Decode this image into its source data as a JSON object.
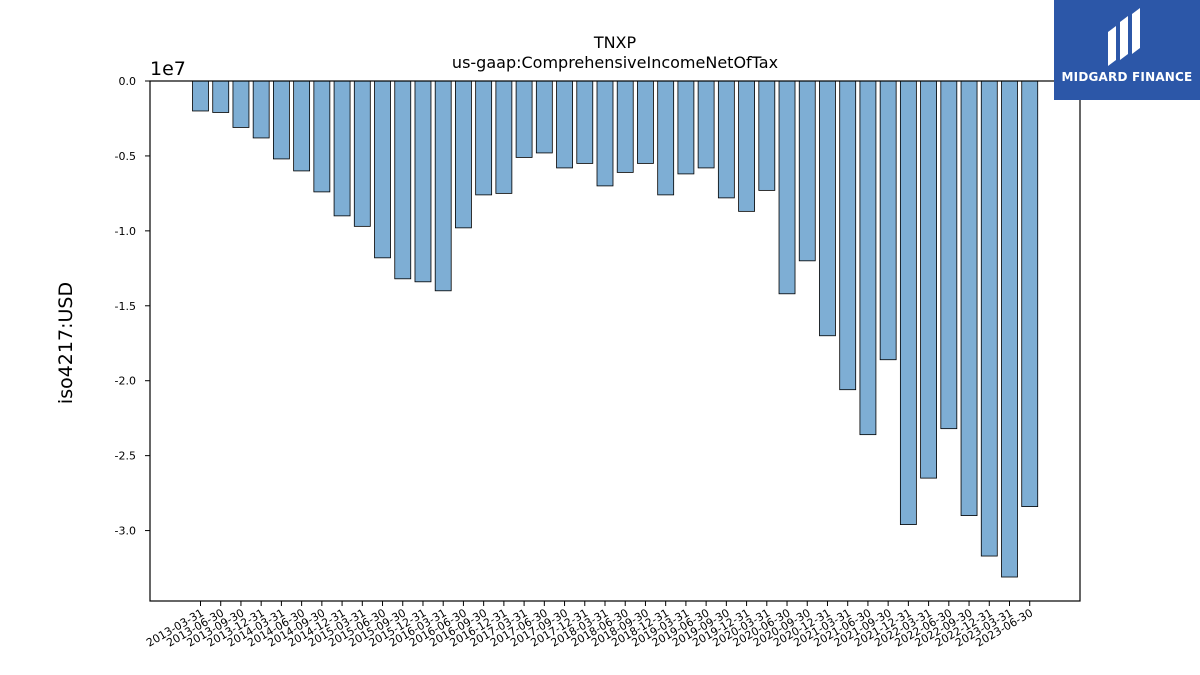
{
  "chart_data": {
    "type": "bar",
    "title": "TNXP",
    "subtitle": "us-gaap:ComprehensiveIncomeNetOfTax",
    "ylabel": "iso4217:USD",
    "offset_label": "1e7",
    "ylim": [
      -3.47,
      0
    ],
    "yticks": [
      "0.0",
      "-0.5",
      "-1.0",
      "-1.5",
      "-2.0",
      "-2.5",
      "-3.0"
    ],
    "ytick_values": [
      0,
      -0.5,
      -1.0,
      -1.5,
      -2.0,
      -2.5,
      -3.0
    ],
    "bar_color": "#7eaed4",
    "categories": [
      "2013-03-31",
      "2013-06-30",
      "2013-09-30",
      "2013-12-31",
      "2014-03-31",
      "2014-06-30",
      "2014-09-30",
      "2014-12-31",
      "2015-03-31",
      "2015-06-30",
      "2015-09-30",
      "2015-12-31",
      "2016-03-31",
      "2016-06-30",
      "2016-09-30",
      "2016-12-31",
      "2017-03-31",
      "2017-06-30",
      "2017-09-30",
      "2017-12-31",
      "2018-03-31",
      "2018-06-30",
      "2018-09-30",
      "2018-12-31",
      "2019-03-31",
      "2019-06-30",
      "2019-09-30",
      "2019-12-31",
      "2020-03-31",
      "2020-06-30",
      "2020-09-30",
      "2020-12-31",
      "2021-03-31",
      "2021-06-30",
      "2021-09-30",
      "2021-12-31",
      "2022-03-31",
      "2022-06-30",
      "2022-09-30",
      "2022-12-31",
      "2023-03-31",
      "2023-06-30"
    ],
    "values": [
      -0.2,
      -0.21,
      -0.31,
      -0.38,
      -0.52,
      -0.6,
      -0.74,
      -0.9,
      -0.97,
      -1.18,
      -1.32,
      -1.34,
      -1.4,
      -0.98,
      -0.76,
      -0.75,
      -0.51,
      -0.48,
      -0.58,
      -0.55,
      -0.7,
      -0.61,
      -0.55,
      -0.76,
      -0.62,
      -0.58,
      -0.78,
      -0.87,
      -0.73,
      -1.42,
      -1.2,
      -1.7,
      -2.06,
      -2.36,
      -1.86,
      -2.96,
      -2.65,
      -2.32,
      -2.9,
      -3.17,
      -3.31,
      -2.84
    ]
  },
  "logo": {
    "text": "MIDGARD FINANCE",
    "color": "#2c57a8"
  }
}
